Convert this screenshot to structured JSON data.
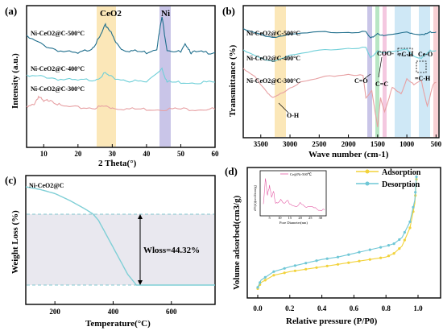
{
  "figure": {
    "panels": {
      "a": {
        "label": "(a)",
        "ylabel": "Intensity (a.u.)",
        "xlabel": "2 Theta(°)",
        "xticks": [
          "10",
          "20",
          "30",
          "40",
          "50",
          "60"
        ],
        "band_labels": [
          "CeO2",
          "Ni"
        ],
        "series_labels": [
          "Ni-CeO2@C-500°C",
          "Ni-CeO2@C-400°C",
          "Ni-CeO2@C-300°C"
        ]
      },
      "b": {
        "label": "(b)",
        "ylabel": "Transmittance (%)",
        "xlabel": "Wave number (cm-1)",
        "xticks": [
          "3500",
          "3000",
          "2500",
          "2000",
          "1500",
          "1000",
          "500"
        ],
        "series_labels": [
          "Ni-CeO2@C-500°C",
          "Ni-CeO2@C-400°C",
          "Ni-CeO2@C-300°C"
        ],
        "annotations": [
          "COO-",
          "=C-H",
          "Ce-O",
          "C=O",
          "C=C",
          "=C-H",
          "O-H"
        ]
      },
      "c": {
        "label": "(c)",
        "title": "Ni-CeO2@C",
        "ylabel": "Weight Loss (%)",
        "xlabel": "Temperature(°C)",
        "xticks": [
          "200",
          "400",
          "600"
        ],
        "wloss_text": "Wloss=44.32%"
      },
      "d": {
        "label": "(d)",
        "ylabel": "Volume adsorbed(cm3/g)",
        "xlabel": "Relative pressure (P/P0)",
        "xticks": [
          "0.0",
          "0.2",
          "0.4",
          "0.6",
          "0.8",
          "1.0"
        ],
        "legend": [
          "Adsorption",
          "Desorption"
        ],
        "inset": {
          "legend": "Ce@Ni-500℃",
          "ylabel": "dV(d)(cm3/nm/g)",
          "xlabel": "Pore Diameter(nm)",
          "xticks": [
            "5",
            "10",
            "15",
            "20",
            "25",
            "30"
          ]
        }
      }
    },
    "colors": {
      "s500": "#1f6e8c",
      "s400": "#6fcfd8",
      "s300": "#e7a0a3",
      "ceo2_band": "#fbe7b8",
      "ni_band": "#c9c5e8",
      "tga": "#7fcfd6",
      "shade": "#e9e8ef",
      "ads": "#f2d23a",
      "des": "#6fc7d6",
      "inset": "#e45ca5"
    }
  },
  "chart_data": [
    {
      "type": "line",
      "title": "",
      "xlabel": "2 Theta(°)",
      "ylabel": "Intensity (a.u.)",
      "xlim": [
        5,
        60
      ],
      "series": [
        {
          "name": "Ni-CeO2@C-500°C",
          "x": [
            5,
            10,
            15,
            20,
            24,
            26,
            28,
            29,
            31,
            33,
            36,
            40,
            43,
            44.5,
            46,
            50,
            51.5,
            53,
            56,
            60
          ],
          "values": [
            0.78,
            0.72,
            0.68,
            0.66,
            0.7,
            0.76,
            0.86,
            0.84,
            0.74,
            0.69,
            0.68,
            0.67,
            0.7,
            0.92,
            0.69,
            0.67,
            0.73,
            0.67,
            0.67,
            0.67
          ]
        },
        {
          "name": "Ni-CeO2@C-400°C",
          "x": [
            5,
            10,
            15,
            20,
            25,
            28,
            30,
            35,
            40,
            44.5,
            46,
            50,
            55,
            60
          ],
          "values": [
            0.5,
            0.5,
            0.48,
            0.47,
            0.48,
            0.52,
            0.49,
            0.47,
            0.46,
            0.56,
            0.46,
            0.46,
            0.46,
            0.46
          ]
        },
        {
          "name": "Ni-CeO2@C-300°C",
          "x": [
            5,
            7,
            8.5,
            10,
            12,
            15,
            20,
            25,
            28,
            30,
            35,
            40,
            45,
            50,
            55,
            60
          ],
          "values": [
            0.28,
            0.3,
            0.36,
            0.32,
            0.34,
            0.29,
            0.28,
            0.28,
            0.29,
            0.28,
            0.27,
            0.27,
            0.27,
            0.27,
            0.27,
            0.27
          ]
        }
      ],
      "bands": [
        {
          "label": "CeO2",
          "range": [
            26,
            31
          ]
        },
        {
          "label": "Ni",
          "range": [
            43,
            46
          ]
        }
      ]
    },
    {
      "type": "line",
      "title": "",
      "xlabel": "Wave number (cm-1)",
      "ylabel": "Transmittance (%)",
      "xlim": [
        3800,
        450
      ],
      "series": [
        {
          "name": "Ni-CeO2@C-500°C",
          "x": [
            3800,
            3500,
            3300,
            3000,
            2500,
            2000,
            1700,
            1620,
            1500,
            1400,
            1000,
            900,
            700,
            600,
            500
          ],
          "values": [
            0.82,
            0.78,
            0.76,
            0.78,
            0.8,
            0.8,
            0.8,
            0.75,
            0.79,
            0.77,
            0.8,
            0.79,
            0.78,
            0.8,
            0.8
          ]
        },
        {
          "name": "Ni-CeO2@C-400°C",
          "x": [
            3800,
            3500,
            3300,
            3000,
            2500,
            2000,
            1700,
            1620,
            1500,
            1400,
            1000,
            880,
            750,
            600,
            500
          ],
          "values": [
            0.66,
            0.6,
            0.58,
            0.62,
            0.66,
            0.68,
            0.68,
            0.6,
            0.66,
            0.64,
            0.67,
            0.62,
            0.6,
            0.66,
            0.66
          ]
        },
        {
          "name": "Ni-CeO2@C-300°C",
          "x": [
            3800,
            3600,
            3400,
            3300,
            3200,
            3000,
            2800,
            2400,
            2000,
            1750,
            1700,
            1600,
            1500,
            1450,
            1380,
            1250,
            1100,
            1000,
            880,
            750,
            650,
            550,
            500
          ],
          "values": [
            0.52,
            0.46,
            0.35,
            0.3,
            0.32,
            0.38,
            0.42,
            0.46,
            0.48,
            0.47,
            0.3,
            0.36,
            0.08,
            0.3,
            0.2,
            0.38,
            0.33,
            0.45,
            0.4,
            0.43,
            0.24,
            0.4,
            0.42
          ]
        }
      ]
    },
    {
      "type": "line",
      "title": "Ni-CeO2@C",
      "xlabel": "Temperature(°C)",
      "ylabel": "Weight Loss (%)",
      "xlim": [
        100,
        750
      ],
      "series": [
        {
          "name": "Ni-CeO2@C",
          "x": [
            100,
            150,
            200,
            250,
            300,
            330,
            350,
            400,
            450,
            480,
            500,
            600,
            750
          ],
          "values": [
            1.0,
            0.98,
            0.95,
            0.9,
            0.84,
            0.8,
            0.75,
            0.55,
            0.35,
            0.27,
            0.27,
            0.27,
            0.27
          ]
        }
      ],
      "annotations": [
        "Wloss=44.32%"
      ]
    },
    {
      "type": "line",
      "title": "",
      "xlabel": "Relative pressure (P/P0)",
      "ylabel": "Volume adsorbed(cm3/g)",
      "xlim": [
        0,
        1.0
      ],
      "series": [
        {
          "name": "Adsorption",
          "x": [
            0.0,
            0.02,
            0.1,
            0.2,
            0.3,
            0.4,
            0.5,
            0.6,
            0.7,
            0.8,
            0.85,
            0.9,
            0.95,
            0.98,
            0.99
          ],
          "values": [
            0.05,
            0.1,
            0.16,
            0.19,
            0.21,
            0.23,
            0.25,
            0.27,
            0.29,
            0.31,
            0.34,
            0.4,
            0.55,
            0.75,
            0.95
          ]
        },
        {
          "name": "Desorption",
          "x": [
            0.0,
            0.02,
            0.1,
            0.2,
            0.3,
            0.4,
            0.5,
            0.6,
            0.7,
            0.8,
            0.85,
            0.9,
            0.95,
            0.98,
            0.99
          ],
          "values": [
            0.06,
            0.12,
            0.19,
            0.23,
            0.26,
            0.29,
            0.31,
            0.34,
            0.37,
            0.4,
            0.42,
            0.47,
            0.6,
            0.78,
            0.97
          ]
        }
      ],
      "inset": {
        "legend": "Ce@Ni-500℃",
        "xlabel": "Pore Diameter(nm)",
        "ylabel": "dV(d)(cm3/nm/g)"
      }
    }
  ]
}
